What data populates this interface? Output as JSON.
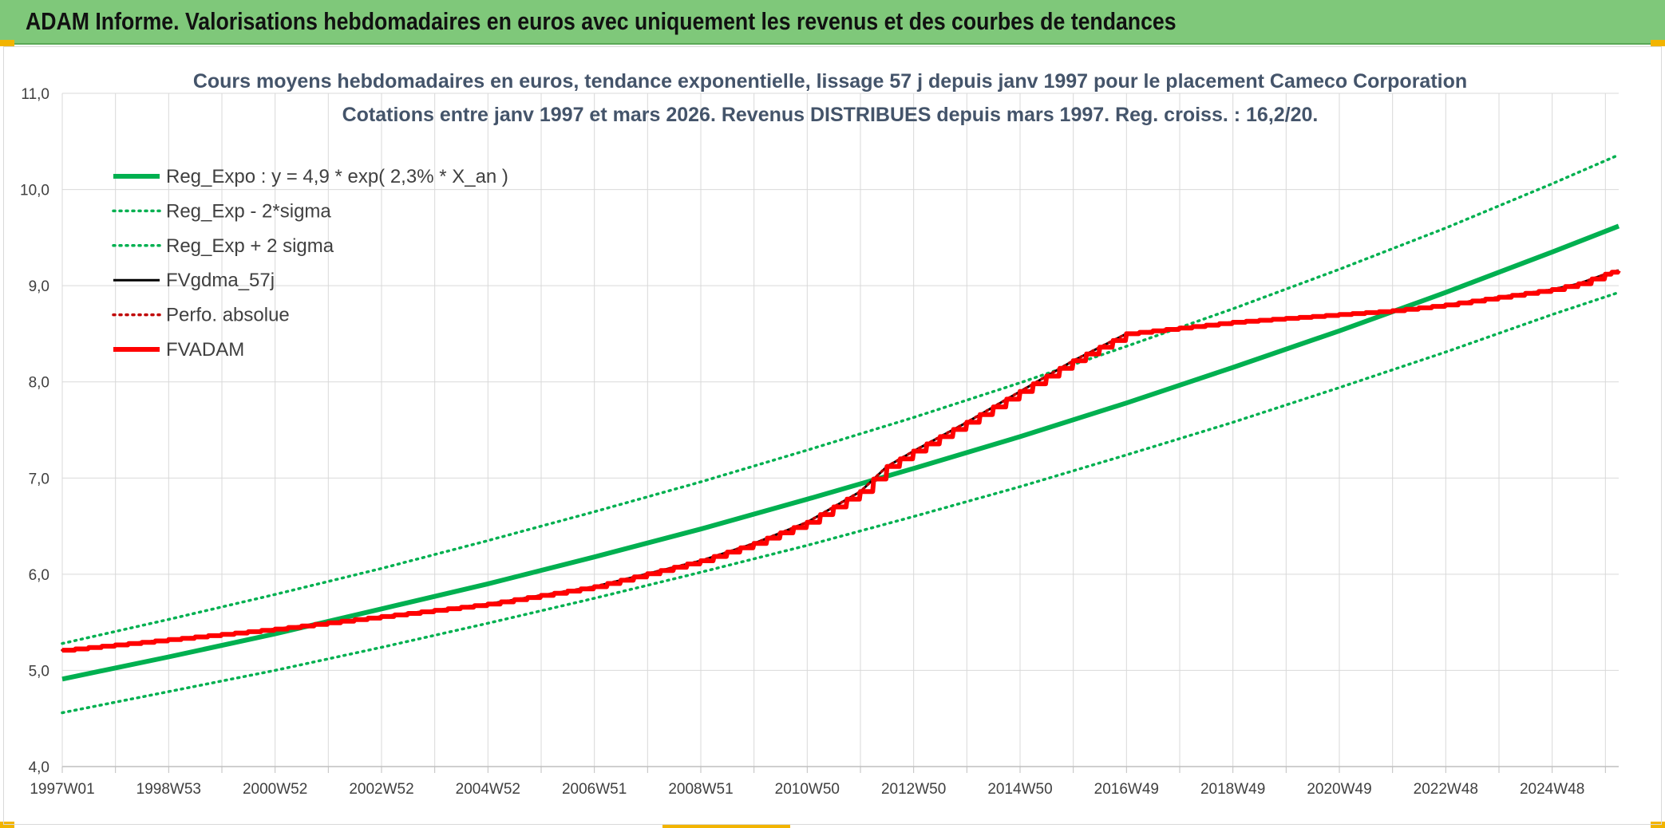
{
  "banner": {
    "title": "ADAM Informe. Valorisations hebdomadaires en euros avec uniquement les revenus et des courbes de tendances"
  },
  "colors": {
    "banner_bg": "#7fc87a",
    "reg_green": "#00b050",
    "adam_red": "#ff0000",
    "gdma_black": "#000000",
    "grid": "#d9d9d9",
    "text": "#44546a"
  },
  "chart_data": {
    "type": "line",
    "title": "Cours moyens hebdomadaires en euros, tendance exponentielle, lissage 57 j depuis janv 1997 pour le placement Cameco Corporation",
    "subtitle": "Cotations entre janv 1997 et mars 2026. Revenus DISTRIBUES depuis mars 1997. Reg. croiss. : 16,2/20.",
    "xlabel": "",
    "ylabel": "",
    "x_range": [
      1997.0,
      2026.25
    ],
    "ylim": [
      4.0,
      11.0
    ],
    "y_ticks": [
      "4,0",
      "5,0",
      "6,0",
      "7,0",
      "8,0",
      "9,0",
      "10,0",
      "11,0"
    ],
    "x_tick_labels": [
      "1997W01",
      "1998W53",
      "2000W52",
      "2002W52",
      "2004W52",
      "2006W51",
      "2008W51",
      "2010W50",
      "2012W50",
      "2014W50",
      "2016W49",
      "2018W49",
      "2020W49",
      "2022W48",
      "2024W48"
    ],
    "x_tick_years": [
      1997.0,
      1999.0,
      2001.0,
      2003.0,
      2005.0,
      2007.0,
      2009.0,
      2011.0,
      2013.0,
      2015.0,
      2017.0,
      2019.0,
      2021.0,
      2023.0,
      2025.0
    ],
    "grid": true,
    "legend_position": "top-left",
    "series": [
      {
        "name": "Reg_Expo : y = 4,9 * exp( 2,3% *  X_an )",
        "style": "solid-thick",
        "color": "#00b050",
        "x": [
          1997,
          1999,
          2001,
          2003,
          2005,
          2007,
          2009,
          2011,
          2013,
          2015,
          2017,
          2019,
          2021,
          2023,
          2025,
          2026.25
        ],
        "values": [
          4.91,
          5.14,
          5.38,
          5.64,
          5.9,
          6.18,
          6.47,
          6.78,
          7.1,
          7.43,
          7.78,
          8.15,
          8.53,
          8.93,
          9.35,
          9.62
        ]
      },
      {
        "name": "Reg_Exp - 2*sigma",
        "style": "dotted",
        "color": "#00b050",
        "x": [
          1997,
          1999,
          2001,
          2003,
          2005,
          2007,
          2009,
          2011,
          2013,
          2015,
          2017,
          2019,
          2021,
          2023,
          2025,
          2026.25
        ],
        "values": [
          4.56,
          4.78,
          5.0,
          5.24,
          5.49,
          5.75,
          6.02,
          6.3,
          6.6,
          6.91,
          7.24,
          7.58,
          7.94,
          8.31,
          8.7,
          8.93
        ]
      },
      {
        "name": "Reg_Exp + 2 sigma",
        "style": "dotted",
        "color": "#00b050",
        "x": [
          1997,
          1999,
          2001,
          2003,
          2005,
          2007,
          2009,
          2011,
          2013,
          2015,
          2017,
          2019,
          2021,
          2023,
          2025,
          2026.25
        ],
        "values": [
          5.28,
          5.53,
          5.79,
          6.06,
          6.35,
          6.65,
          6.96,
          7.29,
          7.63,
          7.99,
          8.37,
          8.76,
          9.17,
          9.6,
          10.06,
          10.36
        ]
      },
      {
        "name": "FVgdma_57j",
        "style": "solid",
        "color": "#000000",
        "x": [
          1997,
          1999,
          2001,
          2003,
          2005,
          2007,
          2009,
          2010,
          2011,
          2012,
          2012.5,
          2013,
          2014,
          2015,
          2016,
          2017,
          2018,
          2019,
          2020,
          2021,
          2022,
          2023,
          2024,
          2025,
          2025.5,
          2026,
          2026.25
        ],
        "values": [
          5.21,
          5.32,
          5.43,
          5.56,
          5.69,
          5.87,
          6.14,
          6.32,
          6.54,
          6.86,
          7.12,
          7.28,
          7.58,
          7.9,
          8.22,
          8.5,
          8.56,
          8.62,
          8.66,
          8.7,
          8.74,
          8.8,
          8.88,
          8.96,
          9.02,
          9.12,
          9.16
        ]
      },
      {
        "name": "Perfo. absolue",
        "style": "dotted",
        "color": "#c00000",
        "x": [
          1997,
          1999,
          2001,
          2003,
          2005,
          2007,
          2009,
          2010,
          2011,
          2012,
          2012.5,
          2013,
          2014,
          2015,
          2016,
          2017,
          2018,
          2019,
          2020,
          2021,
          2022,
          2023,
          2024,
          2025,
          2025.5,
          2026,
          2026.25
        ],
        "values": [
          5.21,
          5.32,
          5.43,
          5.56,
          5.69,
          5.87,
          6.14,
          6.32,
          6.54,
          6.86,
          7.12,
          7.28,
          7.58,
          7.9,
          8.22,
          8.5,
          8.56,
          8.62,
          8.66,
          8.7,
          8.74,
          8.8,
          8.88,
          8.96,
          9.02,
          9.12,
          9.16
        ]
      },
      {
        "name": "FVADAM",
        "style": "stepped-thick",
        "color": "#ff0000",
        "x": [
          1997,
          1999,
          2001,
          2003,
          2005,
          2007,
          2009,
          2010,
          2011,
          2012,
          2012.5,
          2013,
          2014,
          2015,
          2016,
          2017,
          2018,
          2019,
          2020,
          2021,
          2022,
          2023,
          2024,
          2025,
          2025.5,
          2026,
          2026.25
        ],
        "values": [
          5.21,
          5.32,
          5.43,
          5.56,
          5.69,
          5.87,
          6.14,
          6.32,
          6.54,
          6.86,
          7.12,
          7.28,
          7.58,
          7.9,
          8.22,
          8.5,
          8.56,
          8.62,
          8.66,
          8.7,
          8.74,
          8.8,
          8.88,
          8.96,
          9.02,
          9.12,
          9.16
        ]
      }
    ]
  }
}
